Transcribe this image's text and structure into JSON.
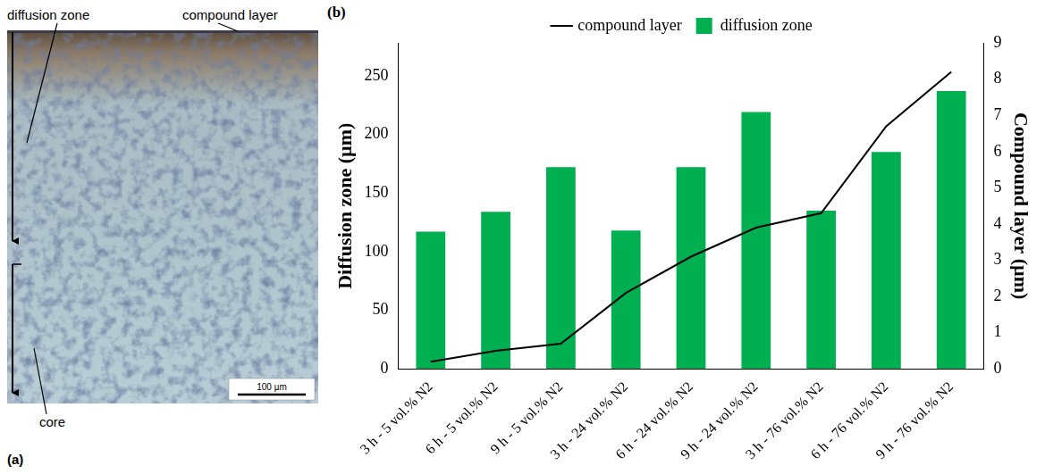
{
  "panel_a": {
    "label": "(a)",
    "annotations": [
      "diffusion zone",
      "compound layer",
      "core"
    ],
    "scale_bar": "100 µm"
  },
  "chart_data": {
    "type": "bar",
    "panel_label": "(b)",
    "categories": [
      "3 h - 5 vol.% N2",
      "6 h - 5 vol.% N2",
      "9 h - 5 vol.% N2",
      "3 h - 24 vol.% N2",
      "6 h - 24 vol.% N2",
      "9 h - 24 vol.% N2",
      "3 h - 76 vol.% N2",
      "6 h - 76 vol.% N2",
      "9 h - 76 vol.% N2"
    ],
    "y_label": "Diffusion zone (µm)",
    "y2_label": "Compound layer (µm)",
    "series": [
      {
        "name": "diffusion zone",
        "type": "bar",
        "color": "#00b050",
        "values": [
          117,
          134,
          172,
          118,
          172,
          219,
          135,
          185,
          237
        ]
      },
      {
        "name": "compound layer",
        "type": "line",
        "color": "#000000",
        "marker": "none",
        "line_style": "solid",
        "axis": "y2",
        "values": [
          0.2,
          0.5,
          0.7,
          2.1,
          3.1,
          3.9,
          4.3,
          6.7,
          8.2
        ]
      }
    ],
    "ylim": [
      0,
      278
    ],
    "yticks": [
      0,
      50,
      100,
      150,
      200,
      250
    ],
    "y2lim": [
      0,
      9
    ],
    "y2ticks": [
      0,
      1,
      2,
      3,
      4,
      5,
      6,
      7,
      8,
      9
    ],
    "grid": false,
    "legend": "top"
  }
}
